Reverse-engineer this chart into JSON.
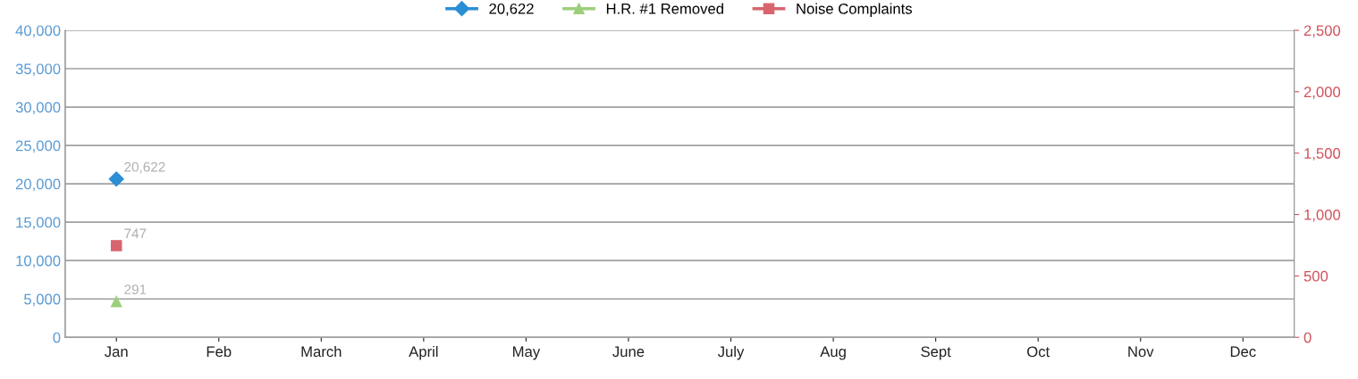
{
  "chart_data": {
    "type": "line",
    "categories": [
      "Jan",
      "Feb",
      "March",
      "April",
      "May",
      "June",
      "July",
      "Aug",
      "Sept",
      "Oct",
      "Nov",
      "Dec"
    ],
    "series": [
      {
        "name": "20,622",
        "color": "#2b8fd6",
        "marker": "diamond",
        "values": [
          20622,
          null,
          null,
          null,
          null,
          null,
          null,
          null,
          null,
          null,
          null,
          null
        ],
        "value_labels": [
          "20,622",
          null,
          null,
          null,
          null,
          null,
          null,
          null,
          null,
          null,
          null,
          null
        ]
      },
      {
        "name": "H.R. #1 Removed",
        "color": "#9ccf7c",
        "marker": "triangle",
        "axis": "y2",
        "values": [
          291,
          null,
          null,
          null,
          null,
          null,
          null,
          null,
          null,
          null,
          null,
          null
        ],
        "value_labels": [
          "291",
          null,
          null,
          null,
          null,
          null,
          null,
          null,
          null,
          null,
          null,
          null
        ]
      },
      {
        "name": "Noise Complaints",
        "color": "#d8646e",
        "marker": "square",
        "axis": "y2",
        "values": [
          747,
          null,
          null,
          null,
          null,
          null,
          null,
          null,
          null,
          null,
          null,
          null
        ],
        "value_labels": [
          "747",
          null,
          null,
          null,
          null,
          null,
          null,
          null,
          null,
          null,
          null,
          null
        ]
      }
    ],
    "ylim": [
      0,
      40000
    ],
    "yticks": [
      {
        "value": 0,
        "label": "0"
      },
      {
        "value": 5000,
        "label": "5,000"
      },
      {
        "value": 10000,
        "label": "10,000"
      },
      {
        "value": 15000,
        "label": "15,000"
      },
      {
        "value": 20000,
        "label": "20,000"
      },
      {
        "value": 25000,
        "label": "25,000"
      },
      {
        "value": 30000,
        "label": "30,000"
      },
      {
        "value": 35000,
        "label": "35,000"
      },
      {
        "value": 40000,
        "label": "40,000"
      }
    ],
    "y2lim": [
      0,
      2500
    ],
    "y2ticks": [
      {
        "value": 0,
        "label": "0"
      },
      {
        "value": 500,
        "label": "500"
      },
      {
        "value": 1000,
        "label": "1,000"
      },
      {
        "value": 1500,
        "label": "1,500"
      },
      {
        "value": 2000,
        "label": "2,000"
      },
      {
        "value": 2500,
        "label": "2,500"
      }
    ],
    "grid": "y",
    "legend": "top"
  }
}
